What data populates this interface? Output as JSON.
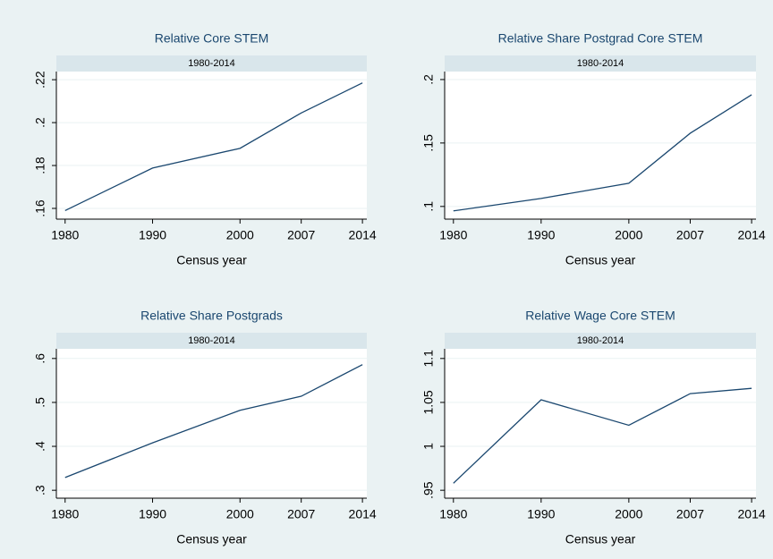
{
  "chart_data": [
    {
      "type": "line",
      "title": "Relative Core STEM",
      "subtitle": "1980-2014",
      "x_label": "Census year",
      "x": [
        1980,
        1990,
        2000,
        2007,
        2014
      ],
      "values": [
        0.159,
        0.1788,
        0.188,
        0.2045,
        0.2185
      ],
      "color": "#1a476f",
      "xlim": [
        1979,
        2014.5
      ],
      "xticks": [
        1980,
        1990,
        2000,
        2007,
        2014
      ],
      "ylim": [
        0.155,
        0.2238
      ],
      "yticks": [
        {
          "value": 0.16,
          "label": ".16"
        },
        {
          "value": 0.18,
          "label": ".18"
        },
        {
          "value": 0.2,
          "label": ".2"
        },
        {
          "value": 0.22,
          "label": ".22"
        }
      ],
      "grid": true
    },
    {
      "type": "line",
      "title": "Relative Share Postgrad Core STEM",
      "subtitle": "1980-2014",
      "x_label": "Census year",
      "x": [
        1980,
        1990,
        2000,
        2007,
        2014
      ],
      "values": [
        0.0965,
        0.1063,
        0.1183,
        0.1577,
        0.188
      ],
      "color": "#1a476f",
      "xlim": [
        1979,
        2014.5
      ],
      "xticks": [
        1980,
        1990,
        2000,
        2007,
        2014
      ],
      "ylim": [
        0.09,
        0.2063
      ],
      "yticks": [
        {
          "value": 0.1,
          "label": ".1"
        },
        {
          "value": 0.15,
          "label": ".15"
        },
        {
          "value": 0.2,
          "label": ".2"
        }
      ],
      "grid": true
    },
    {
      "type": "line",
      "title": "Relative Share Postgrads",
      "subtitle": "1980-2014",
      "x_label": "Census year",
      "x": [
        1980,
        1990,
        2000,
        2007,
        2014
      ],
      "values": [
        0.329,
        0.408,
        0.482,
        0.514,
        0.586
      ],
      "color": "#1a476f",
      "xlim": [
        1979,
        2014.5
      ],
      "xticks": [
        1980,
        1990,
        2000,
        2007,
        2014
      ],
      "ylim": [
        0.282,
        0.622
      ],
      "yticks": [
        {
          "value": 0.3,
          "label": ".3"
        },
        {
          "value": 0.4,
          "label": ".4"
        },
        {
          "value": 0.5,
          "label": ".5"
        },
        {
          "value": 0.6,
          "label": ".6"
        }
      ],
      "grid": true
    },
    {
      "type": "line",
      "title": "Relative Wage Core STEM",
      "subtitle": "1980-2014",
      "x_label": "Census year",
      "x": [
        1980,
        1990,
        2000,
        2007,
        2014
      ],
      "values": [
        0.958,
        1.053,
        1.024,
        1.06,
        1.066
      ],
      "color": "#1a476f",
      "xlim": [
        1979,
        2014.5
      ],
      "xticks": [
        1980,
        1990,
        2000,
        2007,
        2014
      ],
      "ylim": [
        0.941,
        1.111
      ],
      "yticks": [
        {
          "value": 0.95,
          "label": ".95"
        },
        1,
        1.05,
        1.1
      ],
      "grid": true
    }
  ]
}
